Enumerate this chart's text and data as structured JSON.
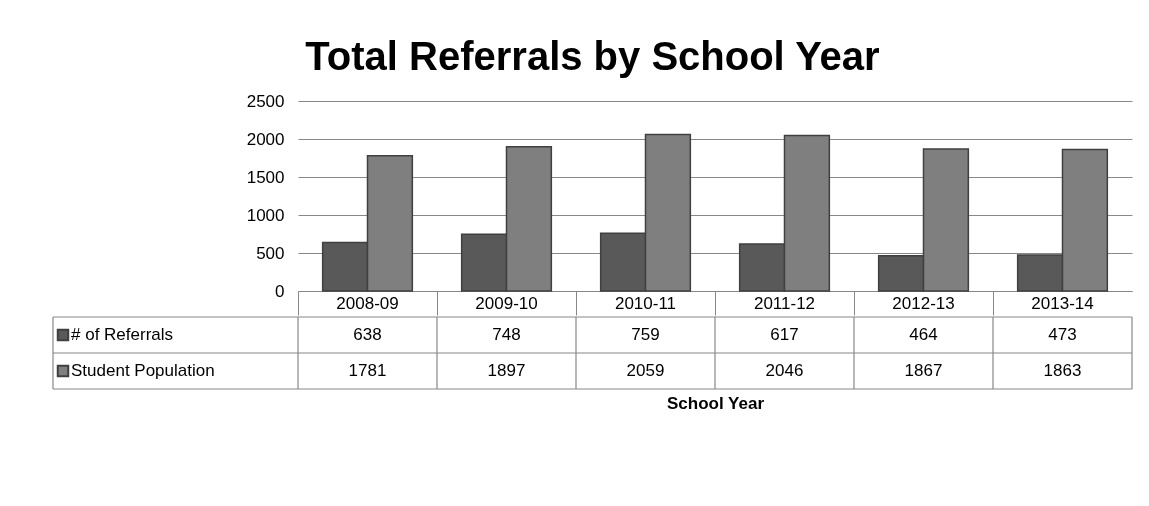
{
  "chart_data": {
    "type": "bar",
    "title": "Total Referrals by School Year",
    "xlabel": "School Year",
    "categories": [
      "2008-09",
      "2009-10",
      "2010-11",
      "2011-12",
      "2012-13",
      "2013-14"
    ],
    "series": [
      {
        "name": "# of Referrals",
        "color": "#595959",
        "values": [
          638,
          748,
          759,
          617,
          464,
          473
        ]
      },
      {
        "name": "Student Population",
        "color": "#7f7f7f",
        "values": [
          1781,
          1897,
          2059,
          2046,
          1867,
          1863
        ]
      }
    ],
    "ylim": [
      0,
      2500
    ],
    "yticks": [
      0,
      500,
      1000,
      1500,
      2000,
      2500
    ],
    "grid": "y",
    "legend": "bottom",
    "data_labels": true
  }
}
